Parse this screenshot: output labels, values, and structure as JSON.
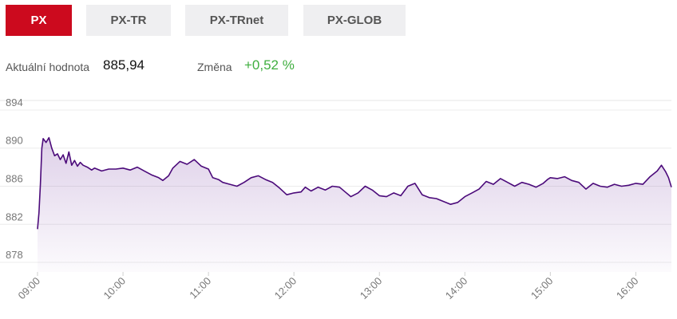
{
  "tabs": [
    {
      "label": "PX",
      "active": true
    },
    {
      "label": "PX-TR",
      "active": false
    },
    {
      "label": "PX-TRnet",
      "active": false
    },
    {
      "label": "PX-GLOB",
      "active": false
    }
  ],
  "stats": {
    "current_label": "Aktuální hodnota",
    "current_value": "885,94",
    "change_label": "Změna",
    "change_value": "+0,52 %"
  },
  "colors": {
    "accent": "#cc0a1e",
    "line": "#4b0a7a",
    "change_positive": "#3fae3f"
  },
  "chart_data": {
    "type": "area",
    "title": "",
    "xlabel": "",
    "ylabel": "",
    "ylim": [
      877,
      895
    ],
    "xlim": [
      "09:00",
      "16:25"
    ],
    "y_ticks": [
      878,
      882,
      886,
      890,
      894
    ],
    "x_ticks": [
      "09:00",
      "10:00",
      "11:00",
      "12:00",
      "13:00",
      "14:00",
      "15:00",
      "16:00"
    ],
    "grid": true,
    "series": [
      {
        "name": "",
        "points": [
          [
            "09:00",
            881.5
          ],
          [
            "09:01",
            883.2
          ],
          [
            "09:02",
            886.2
          ],
          [
            "09:03",
            890.0
          ],
          [
            "09:04",
            891.0
          ],
          [
            "09:06",
            890.6
          ],
          [
            "09:08",
            891.1
          ],
          [
            "09:10",
            890.0
          ],
          [
            "09:12",
            889.2
          ],
          [
            "09:14",
            889.4
          ],
          [
            "09:16",
            888.8
          ],
          [
            "09:18",
            889.3
          ],
          [
            "09:20",
            888.4
          ],
          [
            "09:22",
            889.6
          ],
          [
            "09:24",
            888.2
          ],
          [
            "09:26",
            888.7
          ],
          [
            "09:28",
            888.1
          ],
          [
            "09:30",
            888.5
          ],
          [
            "09:32",
            888.2
          ],
          [
            "09:35",
            888.0
          ],
          [
            "09:38",
            887.7
          ],
          [
            "09:40",
            887.9
          ],
          [
            "09:45",
            887.6
          ],
          [
            "09:50",
            887.8
          ],
          [
            "09:55",
            887.8
          ],
          [
            "10:00",
            887.9
          ],
          [
            "10:05",
            887.7
          ],
          [
            "10:10",
            888.0
          ],
          [
            "10:15",
            887.6
          ],
          [
            "10:20",
            887.2
          ],
          [
            "10:25",
            886.9
          ],
          [
            "10:28",
            886.6
          ],
          [
            "10:32",
            887.1
          ],
          [
            "10:35",
            887.9
          ],
          [
            "10:40",
            888.6
          ],
          [
            "10:45",
            888.3
          ],
          [
            "10:50",
            888.8
          ],
          [
            "10:55",
            888.1
          ],
          [
            "11:00",
            887.8
          ],
          [
            "11:03",
            886.9
          ],
          [
            "11:07",
            886.7
          ],
          [
            "11:10",
            886.4
          ],
          [
            "11:15",
            886.2
          ],
          [
            "11:20",
            886.0
          ],
          [
            "11:25",
            886.4
          ],
          [
            "11:30",
            886.9
          ],
          [
            "11:35",
            887.1
          ],
          [
            "11:40",
            886.7
          ],
          [
            "11:45",
            886.4
          ],
          [
            "11:50",
            885.8
          ],
          [
            "11:55",
            885.1
          ],
          [
            "12:00",
            885.3
          ],
          [
            "12:05",
            885.4
          ],
          [
            "12:08",
            885.9
          ],
          [
            "12:12",
            885.5
          ],
          [
            "12:17",
            885.9
          ],
          [
            "12:22",
            885.6
          ],
          [
            "12:27",
            886.0
          ],
          [
            "12:32",
            885.9
          ],
          [
            "12:36",
            885.4
          ],
          [
            "12:40",
            884.9
          ],
          [
            "12:45",
            885.3
          ],
          [
            "12:50",
            886.0
          ],
          [
            "12:55",
            885.6
          ],
          [
            "13:00",
            885.0
          ],
          [
            "13:05",
            884.9
          ],
          [
            "13:10",
            885.3
          ],
          [
            "13:15",
            885.0
          ],
          [
            "13:20",
            886.0
          ],
          [
            "13:25",
            886.3
          ],
          [
            "13:30",
            885.1
          ],
          [
            "13:35",
            884.8
          ],
          [
            "13:40",
            884.7
          ],
          [
            "13:45",
            884.4
          ],
          [
            "13:50",
            884.1
          ],
          [
            "13:55",
            884.3
          ],
          [
            "14:00",
            884.9
          ],
          [
            "14:05",
            885.3
          ],
          [
            "14:10",
            885.7
          ],
          [
            "14:15",
            886.5
          ],
          [
            "14:20",
            886.2
          ],
          [
            "14:25",
            886.8
          ],
          [
            "14:30",
            886.4
          ],
          [
            "14:35",
            886.0
          ],
          [
            "14:40",
            886.4
          ],
          [
            "14:45",
            886.2
          ],
          [
            "14:50",
            885.9
          ],
          [
            "14:55",
            886.3
          ],
          [
            "14:58",
            886.7
          ],
          [
            "15:00",
            886.9
          ],
          [
            "15:05",
            886.8
          ],
          [
            "15:10",
            887.0
          ],
          [
            "15:15",
            886.6
          ],
          [
            "15:20",
            886.4
          ],
          [
            "15:25",
            885.7
          ],
          [
            "15:30",
            886.3
          ],
          [
            "15:35",
            886.0
          ],
          [
            "15:40",
            885.9
          ],
          [
            "15:45",
            886.2
          ],
          [
            "15:50",
            886.0
          ],
          [
            "15:55",
            886.1
          ],
          [
            "16:00",
            886.3
          ],
          [
            "16:05",
            886.2
          ],
          [
            "16:10",
            887.0
          ],
          [
            "16:15",
            887.6
          ],
          [
            "16:18",
            888.2
          ],
          [
            "16:21",
            887.5
          ],
          [
            "16:23",
            886.9
          ],
          [
            "16:25",
            885.9
          ]
        ]
      }
    ]
  }
}
